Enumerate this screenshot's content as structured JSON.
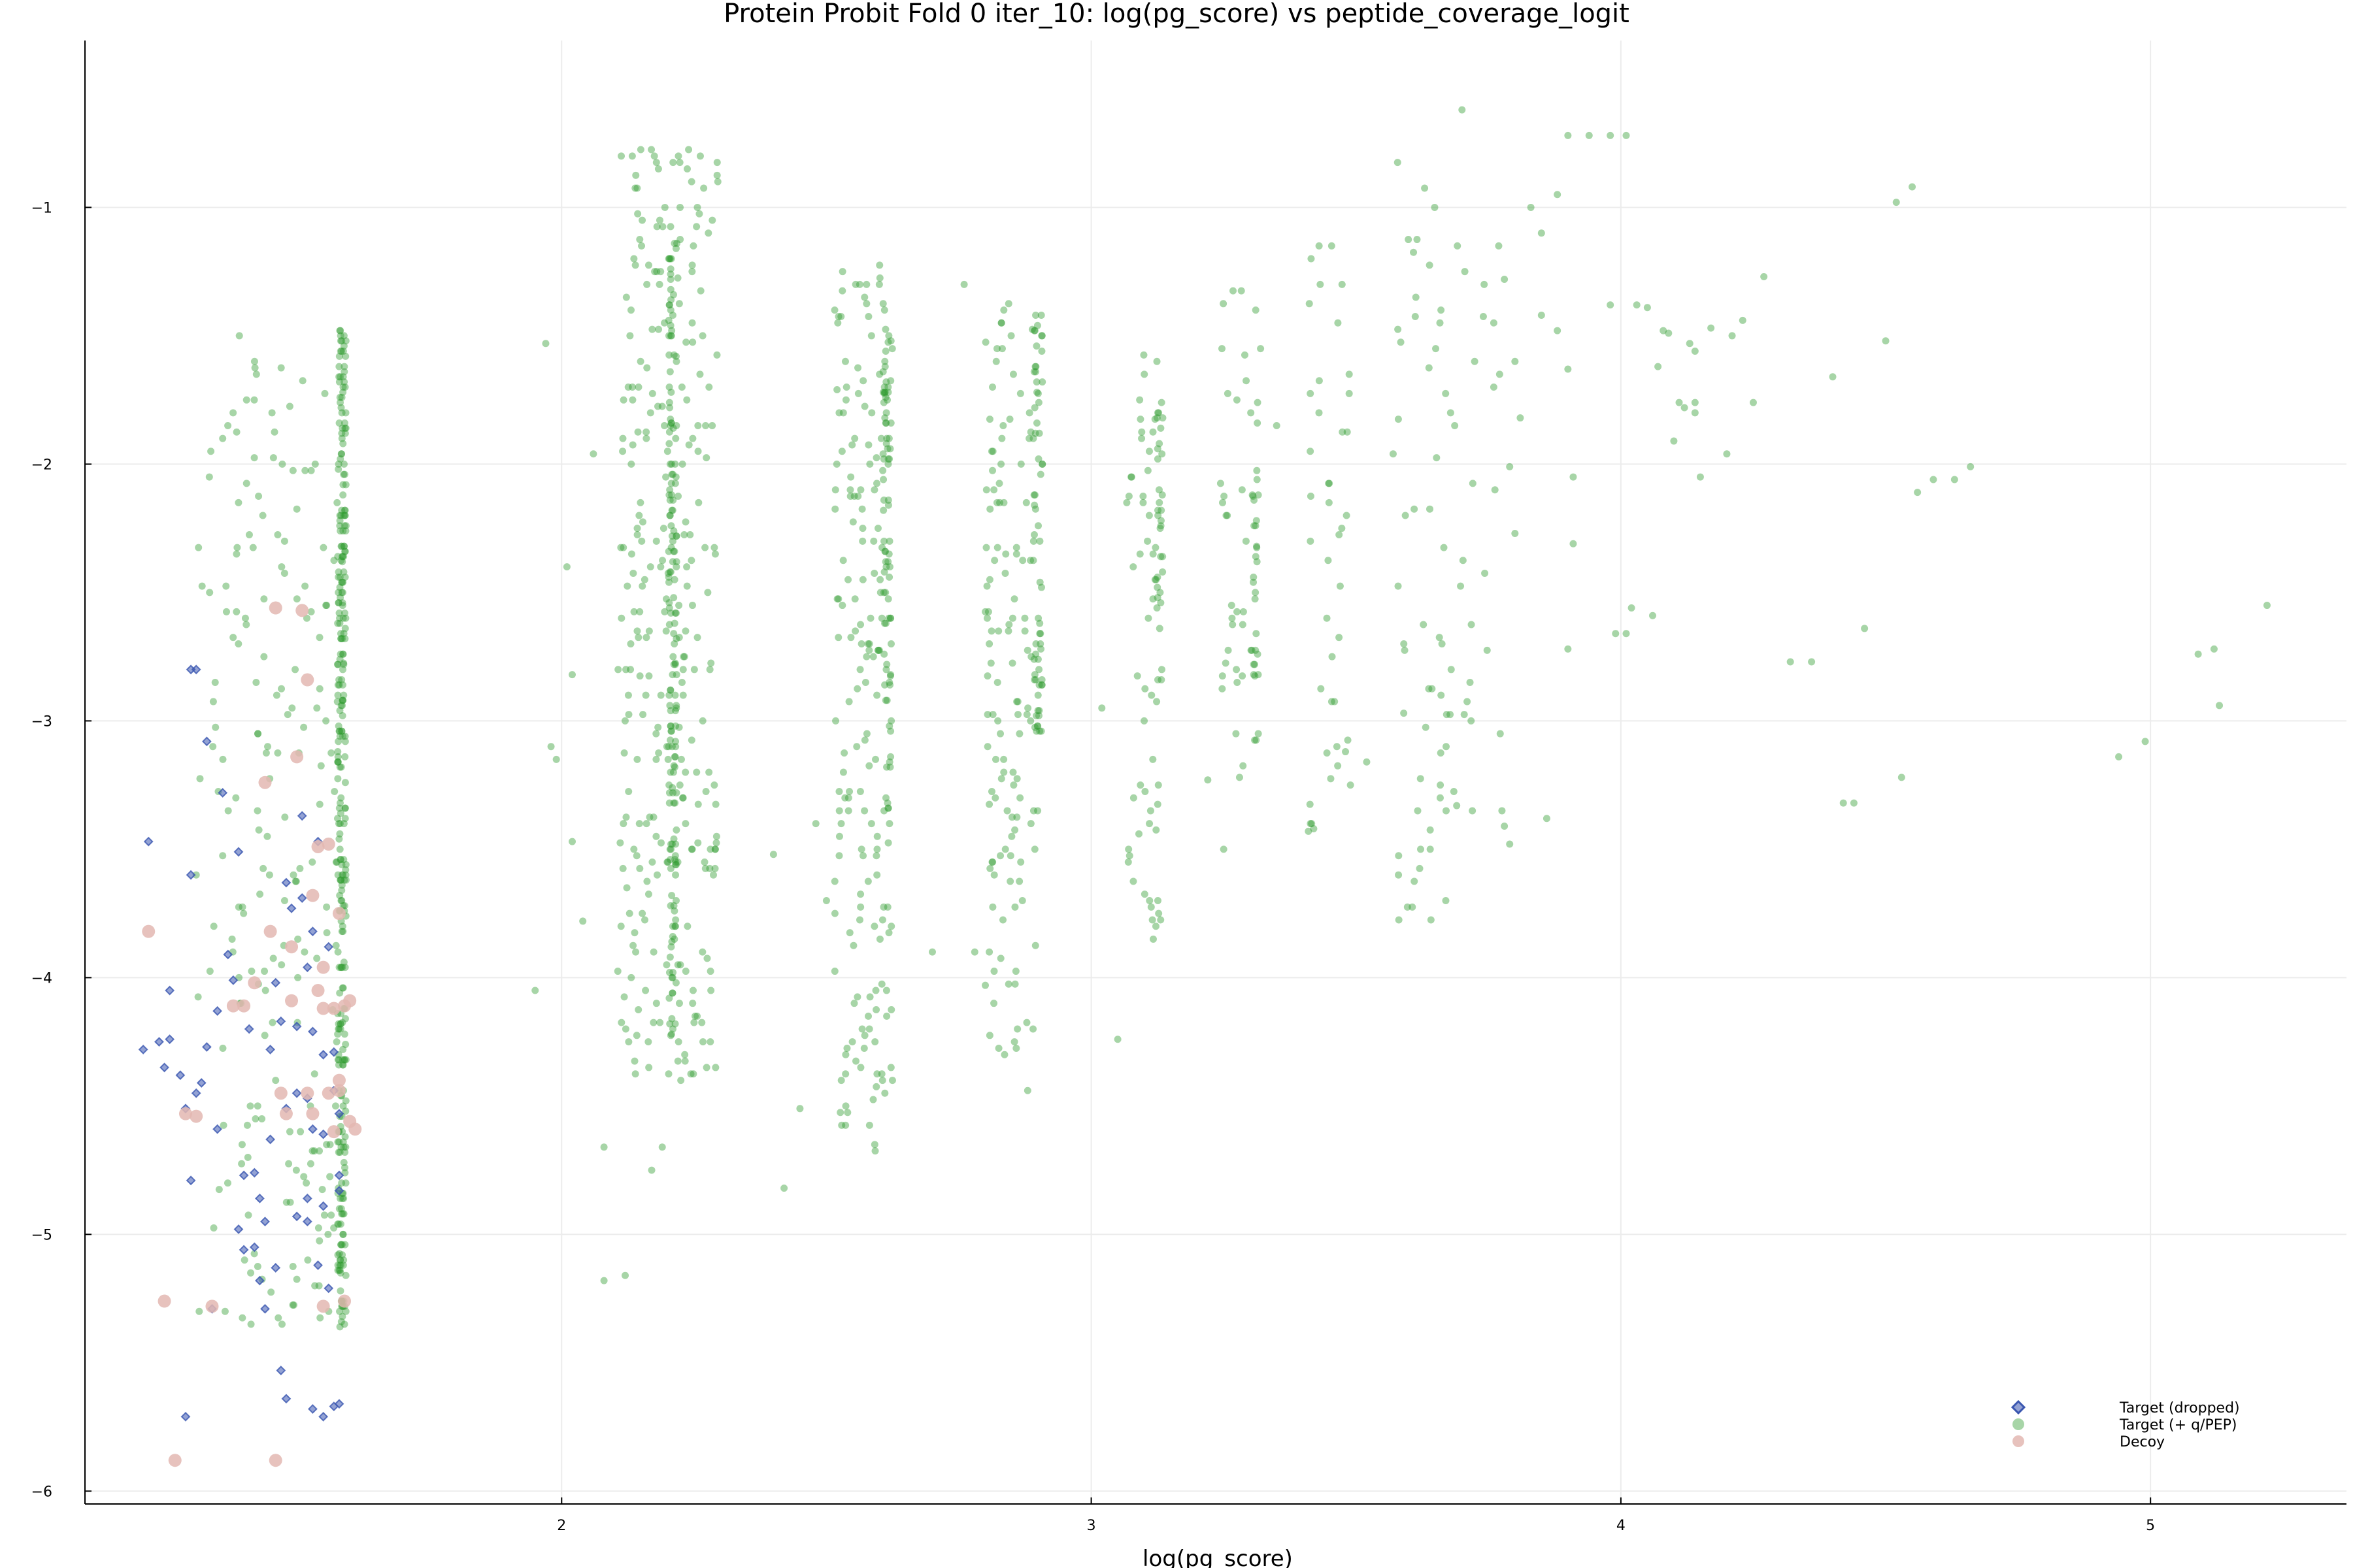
{
  "chart_data": {
    "type": "scatter",
    "title": "Protein Probit Fold 0 iter_10: log(pg_score) vs peptide_coverage_logit",
    "xlabel": "log(pg_score)",
    "ylabel": "",
    "xlim": [
      1.1,
      5.37
    ],
    "ylim": [
      -6.05,
      -0.35
    ],
    "xticks": [
      2,
      3,
      4,
      5
    ],
    "yticks": [
      -1,
      -2,
      -3,
      -4,
      -5,
      -6
    ],
    "ytick_labels": [
      "−1",
      "−2",
      "−3",
      "−4",
      "−5",
      "−6"
    ],
    "grid": true,
    "legend_position": "bottom-right",
    "colors": {
      "dropped": "#3a56b0",
      "target": "#2e9a2e",
      "decoy": "#e3b7b2"
    },
    "series": [
      {
        "name": "Target (dropped)",
        "marker": "diamond",
        "points": [
          [
            1.22,
            -3.47
          ],
          [
            1.26,
            -4.05
          ],
          [
            1.24,
            -4.25
          ],
          [
            1.21,
            -4.28
          ],
          [
            1.25,
            -4.35
          ],
          [
            1.28,
            -4.38
          ],
          [
            1.29,
            -4.51
          ],
          [
            1.26,
            -4.24
          ],
          [
            1.31,
            -4.45
          ],
          [
            1.32,
            -4.41
          ],
          [
            1.3,
            -2.8
          ],
          [
            1.31,
            -2.8
          ],
          [
            1.33,
            -3.08
          ],
          [
            1.36,
            -3.28
          ],
          [
            1.39,
            -3.51
          ],
          [
            1.3,
            -3.6
          ],
          [
            1.35,
            -4.13
          ],
          [
            1.37,
            -3.91
          ],
          [
            1.38,
            -4.01
          ],
          [
            1.33,
            -4.27
          ],
          [
            1.35,
            -4.59
          ],
          [
            1.41,
            -4.2
          ],
          [
            1.3,
            -4.79
          ],
          [
            1.4,
            -4.77
          ],
          [
            1.42,
            -4.76
          ],
          [
            1.43,
            -4.86
          ],
          [
            1.44,
            -4.95
          ],
          [
            1.39,
            -4.98
          ],
          [
            1.43,
            -5.18
          ],
          [
            1.46,
            -5.13
          ],
          [
            1.34,
            -5.29
          ],
          [
            1.44,
            -5.29
          ],
          [
            1.42,
            -5.05
          ],
          [
            1.4,
            -5.06
          ],
          [
            1.47,
            -5.53
          ],
          [
            1.48,
            -5.64
          ],
          [
            1.29,
            -5.71
          ],
          [
            1.53,
            -5.68
          ],
          [
            1.55,
            -5.71
          ],
          [
            1.58,
            -5.66
          ],
          [
            1.57,
            -5.67
          ],
          [
            1.52,
            -4.95
          ],
          [
            1.5,
            -4.93
          ],
          [
            1.55,
            -4.89
          ],
          [
            1.52,
            -4.86
          ],
          [
            1.58,
            -4.83
          ],
          [
            1.54,
            -5.12
          ],
          [
            1.56,
            -5.21
          ],
          [
            1.58,
            -4.77
          ],
          [
            1.48,
            -4.51
          ],
          [
            1.45,
            -4.63
          ],
          [
            1.53,
            -4.59
          ],
          [
            1.55,
            -4.61
          ],
          [
            1.57,
            -4.44
          ],
          [
            1.53,
            -4.21
          ],
          [
            1.47,
            -4.17
          ],
          [
            1.5,
            -4.19
          ],
          [
            1.46,
            -4.02
          ],
          [
            1.52,
            -3.96
          ],
          [
            1.49,
            -3.73
          ],
          [
            1.51,
            -3.69
          ],
          [
            1.48,
            -3.63
          ],
          [
            1.54,
            -3.47
          ],
          [
            1.51,
            -3.37
          ],
          [
            1.53,
            -3.82
          ],
          [
            1.56,
            -3.88
          ],
          [
            1.57,
            -4.29
          ],
          [
            1.45,
            -4.28
          ],
          [
            1.5,
            -4.45
          ],
          [
            1.58,
            -4.53
          ],
          [
            1.55,
            -4.3
          ],
          [
            1.52,
            -4.47
          ]
        ]
      },
      {
        "name": "Target (+ q/PEP)",
        "marker": "circle",
        "clusters": [
          {
            "x": 1.45,
            "xs": 0.14,
            "y0": -5.36,
            "y1": -1.47,
            "n": 210,
            "q": 0.025
          },
          {
            "x": 1.585,
            "xs": 0.008,
            "y0": -5.36,
            "y1": -1.47,
            "n": 300,
            "q": 0.02
          },
          {
            "x": 2.2,
            "xs": 0.095,
            "y0": -4.4,
            "y1": -0.78,
            "n": 300,
            "q": 0.025
          },
          {
            "x": 2.21,
            "xs": 0.008,
            "y0": -4.23,
            "y1": -1.1,
            "n": 140,
            "q": 0.02
          },
          {
            "x": 2.57,
            "xs": 0.055,
            "y0": -4.7,
            "y1": -1.18,
            "n": 180,
            "q": 0.025
          },
          {
            "x": 2.615,
            "xs": 0.008,
            "y0": -3.35,
            "y1": -1.5,
            "n": 70,
            "q": 0.02
          },
          {
            "x": 2.85,
            "xs": 0.05,
            "y0": -4.3,
            "y1": -1.35,
            "n": 130,
            "q": 0.025
          },
          {
            "x": 2.9,
            "xs": 0.008,
            "y0": -3.05,
            "y1": -1.4,
            "n": 60,
            "q": 0.02
          },
          {
            "x": 3.1,
            "xs": 0.035,
            "y0": -3.85,
            "y1": -1.4,
            "n": 55,
            "q": 0.025
          },
          {
            "x": 3.13,
            "xs": 0.006,
            "y0": -2.9,
            "y1": -1.7,
            "n": 30,
            "q": 0.02
          },
          {
            "x": 3.28,
            "xs": 0.04,
            "y0": -3.2,
            "y1": -1.25,
            "n": 45,
            "q": 0.025
          },
          {
            "x": 3.31,
            "xs": 0.006,
            "y0": -2.9,
            "y1": -1.58,
            "n": 20,
            "q": 0.02
          },
          {
            "x": 3.45,
            "xs": 0.04,
            "y0": -3.45,
            "y1": -1.1,
            "n": 40,
            "q": 0.025
          },
          {
            "x": 3.62,
            "xs": 0.05,
            "y0": -3.97,
            "y1": -0.8,
            "n": 45,
            "q": 0.025
          },
          {
            "x": 3.72,
            "xs": 0.06,
            "y0": -3.35,
            "y1": -1.05,
            "n": 30,
            "q": 0.025
          }
        ],
        "scatter": [
          [
            1.95,
            -4.05
          ],
          [
            1.98,
            -3.1
          ],
          [
            1.99,
            -3.15
          ],
          [
            2.02,
            -2.82
          ],
          [
            2.04,
            -3.78
          ],
          [
            2.01,
            -2.4
          ],
          [
            2.06,
            -1.96
          ],
          [
            2.08,
            -4.66
          ],
          [
            2.08,
            -5.18
          ],
          [
            2.12,
            -5.16
          ],
          [
            2.17,
            -4.75
          ],
          [
            2.19,
            -4.66
          ],
          [
            1.97,
            -1.53
          ],
          [
            2.02,
            -3.47
          ],
          [
            2.45,
            -4.51
          ],
          [
            2.42,
            -4.82
          ],
          [
            2.5,
            -3.7
          ],
          [
            2.4,
            -3.52
          ],
          [
            2.48,
            -3.4
          ],
          [
            2.52,
            -1.71
          ],
          [
            2.8,
            -4.03
          ],
          [
            2.78,
            -3.9
          ],
          [
            2.76,
            -1.3
          ],
          [
            2.7,
            -3.9
          ],
          [
            2.88,
            -4.44
          ],
          [
            2.87,
            -3.7
          ],
          [
            3.05,
            -4.24
          ],
          [
            3.08,
            -3.3
          ],
          [
            3.09,
            -3.44
          ],
          [
            3.02,
            -2.95
          ],
          [
            3.25,
            -3.5
          ],
          [
            3.28,
            -3.22
          ],
          [
            3.22,
            -3.23
          ],
          [
            3.35,
            -1.85
          ],
          [
            3.48,
            -3.12
          ],
          [
            3.42,
            -3.42
          ],
          [
            3.41,
            -3.43
          ],
          [
            3.52,
            -3.16
          ],
          [
            3.57,
            -1.96
          ],
          [
            3.59,
            -2.97
          ],
          [
            3.58,
            -3.6
          ],
          [
            3.64,
            -3.5
          ],
          [
            3.67,
            -3.35
          ],
          [
            3.69,
            -3.33
          ],
          [
            3.7,
            -0.62
          ],
          [
            3.76,
            -1.7
          ],
          [
            3.78,
            -1.28
          ],
          [
            3.79,
            -3.48
          ],
          [
            3.8,
            -1.6
          ],
          [
            3.81,
            -1.82
          ],
          [
            3.83,
            -1.0
          ],
          [
            3.85,
            -1.1
          ],
          [
            3.86,
            -3.38
          ],
          [
            3.88,
            -0.95
          ],
          [
            3.9,
            -0.72
          ],
          [
            3.94,
            -0.72
          ],
          [
            3.98,
            -0.72
          ],
          [
            4.01,
            -0.72
          ],
          [
            3.78,
            -3.41
          ],
          [
            3.88,
            -1.48
          ],
          [
            3.9,
            -1.63
          ],
          [
            3.91,
            -2.05
          ],
          [
            3.9,
            -2.72
          ],
          [
            3.91,
            -2.31
          ],
          [
            3.79,
            -2.01
          ],
          [
            3.8,
            -2.27
          ],
          [
            3.76,
            -1.45
          ],
          [
            3.85,
            -1.42
          ],
          [
            3.98,
            -1.38
          ],
          [
            4.03,
            -1.38
          ],
          [
            4.05,
            -1.39
          ],
          [
            3.99,
            -2.66
          ],
          [
            4.01,
            -2.66
          ],
          [
            4.02,
            -2.56
          ],
          [
            4.06,
            -2.59
          ],
          [
            4.07,
            -1.62
          ],
          [
            4.08,
            -1.48
          ],
          [
            4.09,
            -1.49
          ],
          [
            4.1,
            -1.91
          ],
          [
            4.11,
            -1.76
          ],
          [
            4.12,
            -1.78
          ],
          [
            4.14,
            -1.76
          ],
          [
            4.14,
            -1.56
          ],
          [
            4.13,
            -1.53
          ],
          [
            4.14,
            -1.8
          ],
          [
            4.17,
            -1.47
          ],
          [
            4.21,
            -1.5
          ],
          [
            4.23,
            -1.44
          ],
          [
            4.2,
            -1.96
          ],
          [
            4.25,
            -1.76
          ],
          [
            4.27,
            -1.27
          ],
          [
            4.32,
            -2.77
          ],
          [
            4.36,
            -2.77
          ],
          [
            4.4,
            -1.66
          ],
          [
            4.42,
            -3.32
          ],
          [
            4.44,
            -3.32
          ],
          [
            4.46,
            -2.64
          ],
          [
            4.5,
            -1.52
          ],
          [
            4.52,
            -0.98
          ],
          [
            4.53,
            -3.22
          ],
          [
            4.55,
            -0.92
          ],
          [
            4.56,
            -2.11
          ],
          [
            4.59,
            -2.06
          ],
          [
            4.63,
            -2.06
          ],
          [
            4.66,
            -2.01
          ],
          [
            4.94,
            -3.14
          ],
          [
            4.99,
            -3.08
          ],
          [
            5.09,
            -2.74
          ],
          [
            5.12,
            -2.72
          ],
          [
            5.13,
            -2.94
          ],
          [
            5.22,
            -2.55
          ],
          [
            4.15,
            -2.05
          ]
        ]
      },
      {
        "name": "Decoy",
        "marker": "circle",
        "points": [
          [
            1.22,
            -3.82
          ],
          [
            1.25,
            -5.26
          ],
          [
            1.27,
            -5.88
          ],
          [
            1.31,
            -4.54
          ],
          [
            1.29,
            -4.53
          ],
          [
            1.34,
            -5.28
          ],
          [
            1.38,
            -4.11
          ],
          [
            1.42,
            -4.02
          ],
          [
            1.44,
            -3.24
          ],
          [
            1.45,
            -3.82
          ],
          [
            1.46,
            -2.56
          ],
          [
            1.47,
            -4.45
          ],
          [
            1.48,
            -4.53
          ],
          [
            1.46,
            -5.88
          ],
          [
            1.49,
            -4.09
          ],
          [
            1.5,
            -3.14
          ],
          [
            1.51,
            -2.57
          ],
          [
            1.52,
            -2.84
          ],
          [
            1.53,
            -4.53
          ],
          [
            1.54,
            -4.05
          ],
          [
            1.55,
            -4.12
          ],
          [
            1.56,
            -4.45
          ],
          [
            1.57,
            -4.12
          ],
          [
            1.58,
            -4.4
          ],
          [
            1.55,
            -5.28
          ],
          [
            1.59,
            -5.26
          ],
          [
            1.58,
            -3.75
          ],
          [
            1.55,
            -3.96
          ],
          [
            1.56,
            -3.48
          ],
          [
            1.6,
            -4.56
          ],
          [
            1.57,
            -4.6
          ],
          [
            1.61,
            -4.59
          ],
          [
            1.6,
            -4.09
          ],
          [
            1.53,
            -3.68
          ],
          [
            1.49,
            -3.88
          ],
          [
            1.52,
            -4.45
          ],
          [
            1.59,
            -4.11
          ],
          [
            1.4,
            -4.11
          ],
          [
            1.54,
            -3.49
          ],
          [
            1.58,
            -4.44
          ]
        ]
      }
    ]
  }
}
